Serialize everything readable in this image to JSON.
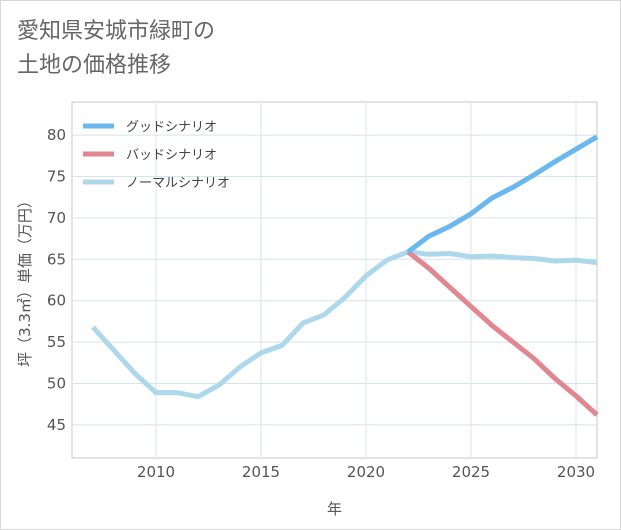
{
  "title_line1": "愛知県安城市緑町の",
  "title_line2": "土地の価格推移",
  "chart_data": {
    "type": "line",
    "title": "愛知県安城市緑町の土地の価格推移",
    "xlabel": "年",
    "ylabel": "坪（3.3㎡）単価（万円）",
    "xlim": [
      2006,
      2031
    ],
    "ylim": [
      41,
      84
    ],
    "x_ticks": [
      2010,
      2015,
      2020,
      2025,
      2030
    ],
    "y_ticks": [
      45,
      50,
      55,
      60,
      65,
      70,
      75,
      80
    ],
    "grid": true,
    "legend_position": "top-left",
    "series": [
      {
        "name": "グッドシナリオ",
        "color": "#6ab8ee",
        "x": [
          2022,
          2023,
          2024,
          2025,
          2026,
          2027,
          2028,
          2029,
          2030,
          2031
        ],
        "y": [
          65.9,
          67.8,
          69.0,
          70.5,
          72.4,
          73.7,
          75.2,
          76.8,
          78.3,
          79.8
        ]
      },
      {
        "name": "バッドシナリオ",
        "color": "#e0878f",
        "x": [
          2022,
          2023,
          2024,
          2025,
          2026,
          2027,
          2028,
          2029,
          2030,
          2031
        ],
        "y": [
          65.9,
          63.9,
          61.6,
          59.3,
          57.0,
          55.0,
          53.0,
          50.6,
          48.5,
          46.2
        ]
      },
      {
        "name": "ノーマルシナリオ",
        "color": "#add8ec",
        "x": [
          2007,
          2008,
          2009,
          2010,
          2011,
          2012,
          2013,
          2014,
          2015,
          2016,
          2017,
          2018,
          2019,
          2020,
          2021,
          2022,
          2023,
          2024,
          2025,
          2026,
          2027,
          2028,
          2029,
          2030,
          2031
        ],
        "y": [
          56.8,
          54.0,
          51.2,
          48.9,
          48.9,
          48.4,
          49.8,
          52.0,
          53.7,
          54.6,
          57.3,
          58.3,
          60.4,
          63.0,
          64.9,
          65.9,
          65.6,
          65.7,
          65.3,
          65.4,
          65.2,
          65.1,
          64.8,
          64.9,
          64.6
        ]
      }
    ]
  }
}
